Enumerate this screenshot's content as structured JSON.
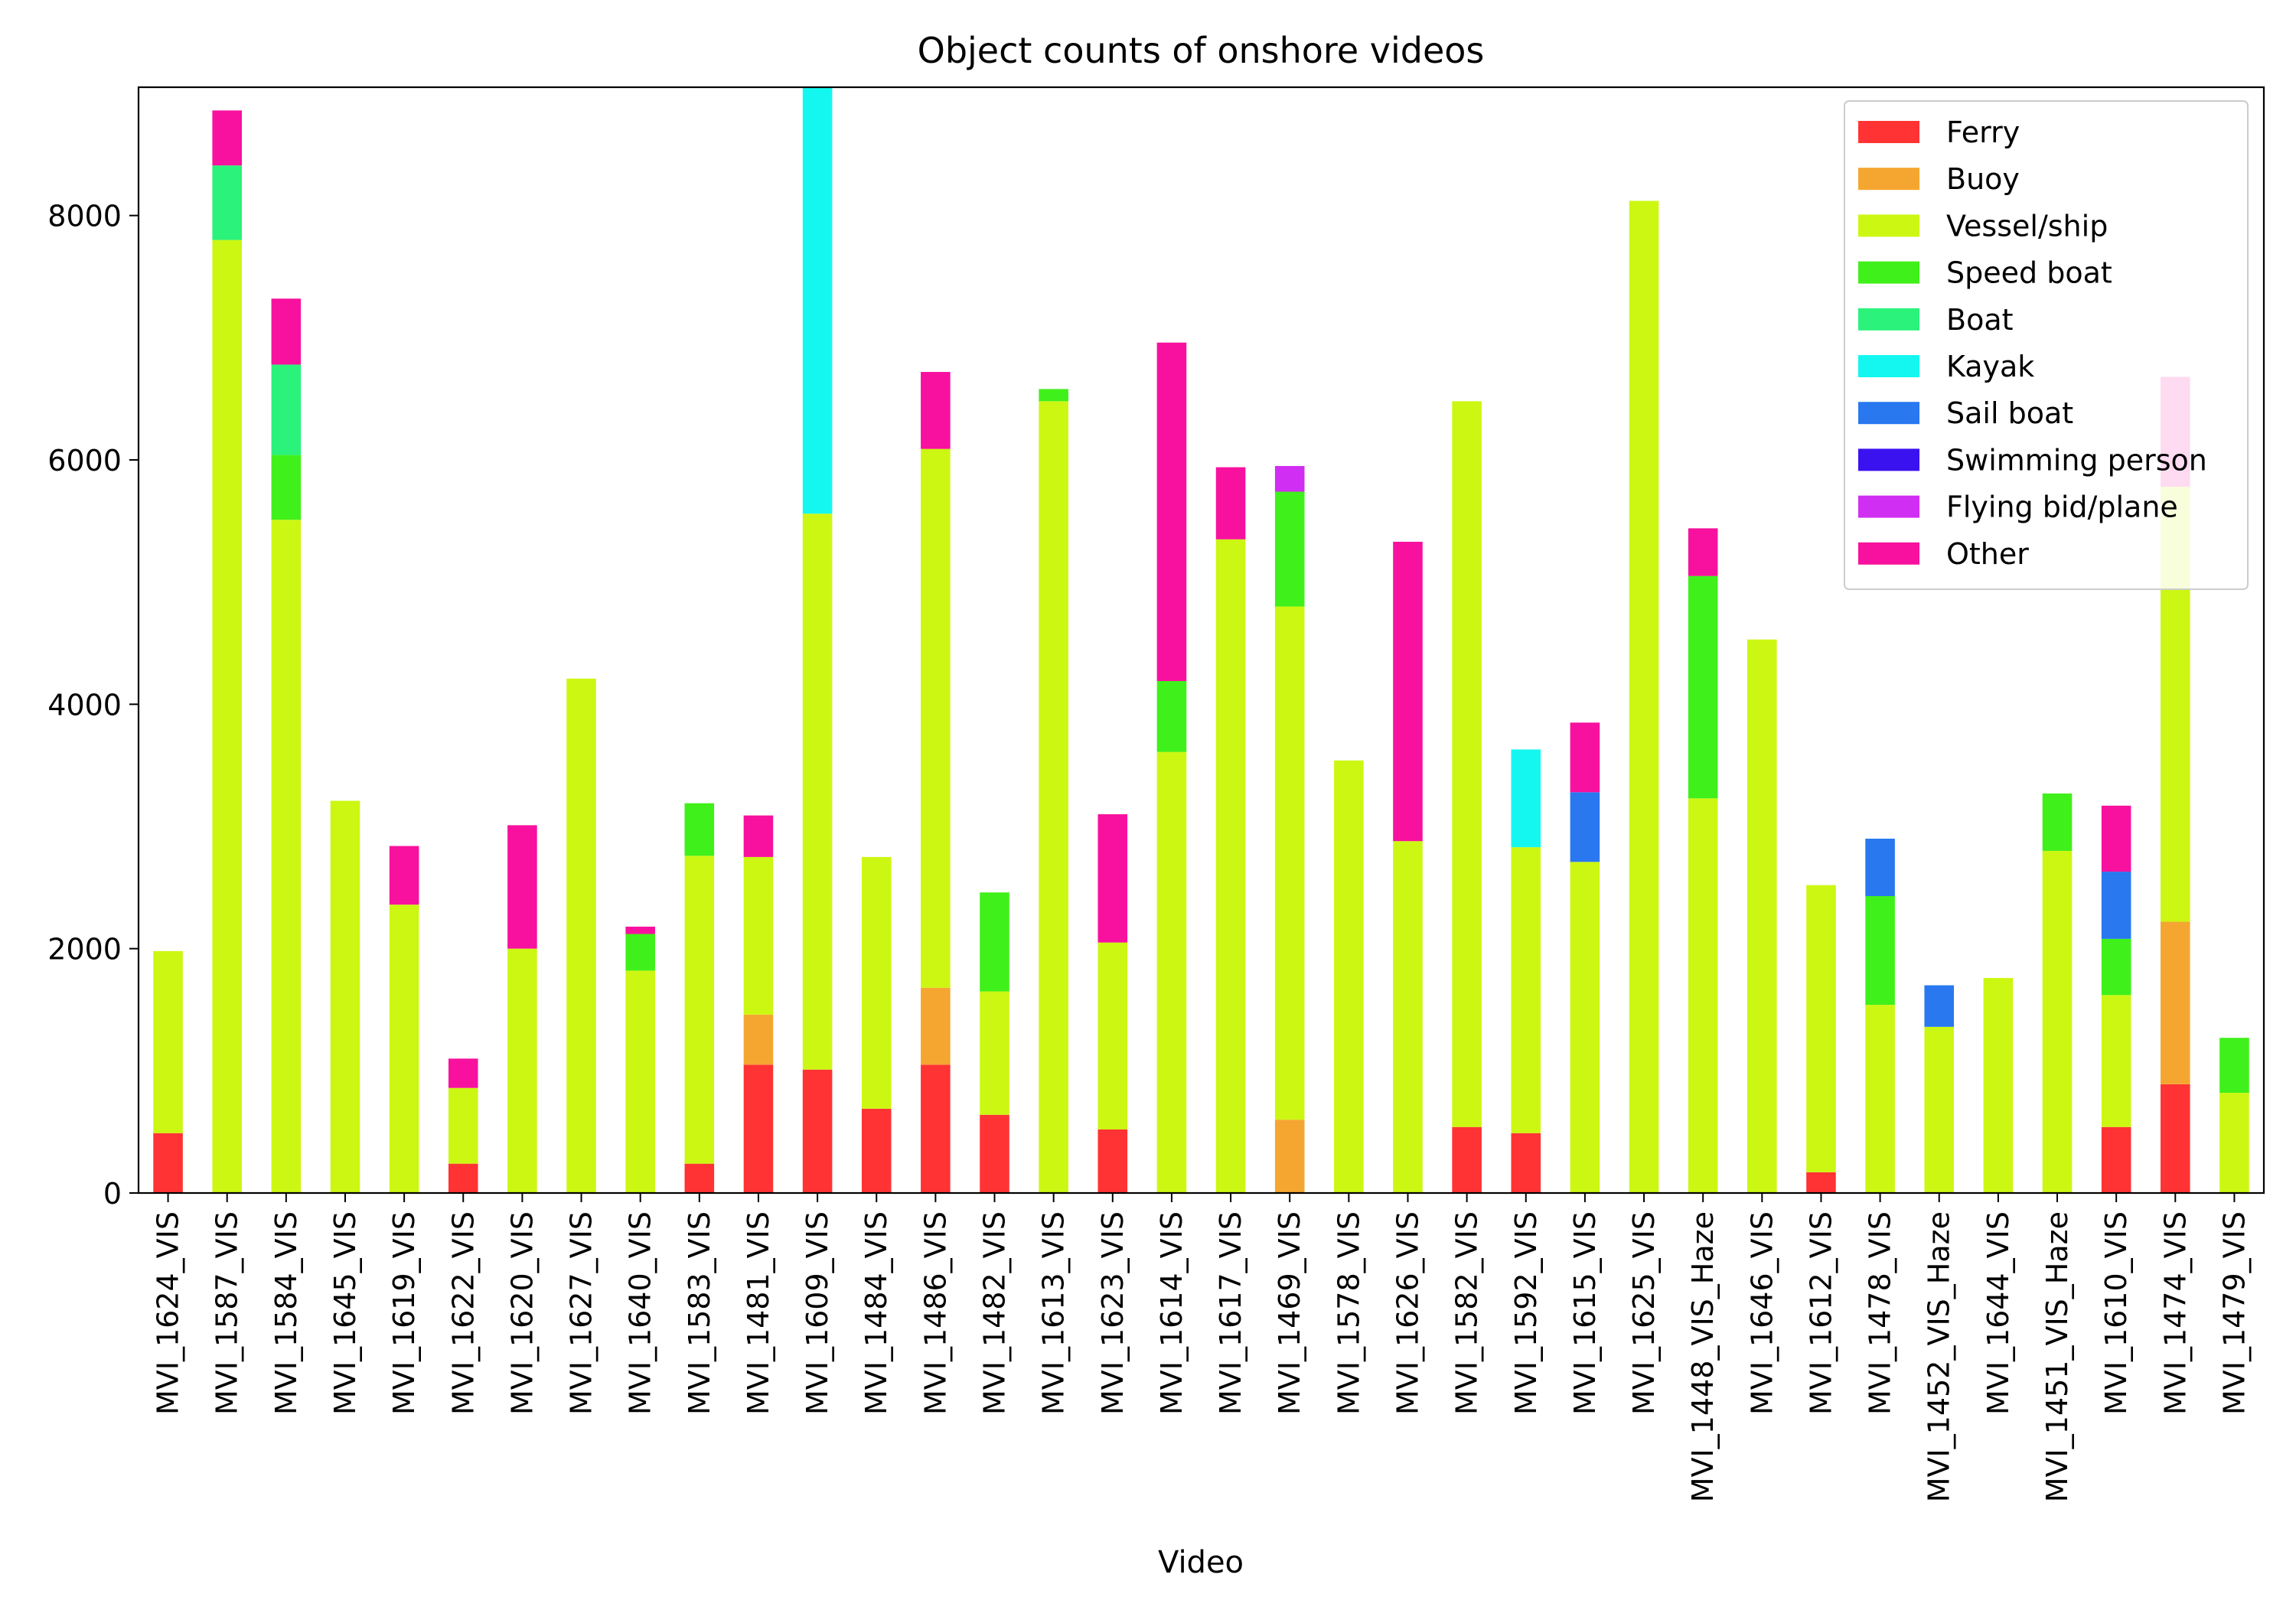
{
  "chart_data": {
    "type": "bar",
    "stacked": true,
    "title": "Object counts of onshore videos",
    "xlabel": "Video",
    "ylabel": "",
    "ylim": [
      0,
      9050
    ],
    "yticks": [
      0,
      2000,
      4000,
      6000,
      8000
    ],
    "grid": false,
    "legend_position": "top-right",
    "categories": [
      "MVI_1624_VIS",
      "MVI_1587_VIS",
      "MVI_1584_VIS",
      "MVI_1645_VIS",
      "MVI_1619_VIS",
      "MVI_1622_VIS",
      "MVI_1620_VIS",
      "MVI_1627_VIS",
      "MVI_1640_VIS",
      "MVI_1583_VIS",
      "MVI_1481_VIS",
      "MVI_1609_VIS",
      "MVI_1484_VIS",
      "MVI_1486_VIS",
      "MVI_1482_VIS",
      "MVI_1613_VIS",
      "MVI_1623_VIS",
      "MVI_1614_VIS",
      "MVI_1617_VIS",
      "MVI_1469_VIS",
      "MVI_1578_VIS",
      "MVI_1626_VIS",
      "MVI_1582_VIS",
      "MVI_1592_VIS",
      "MVI_1615_VIS",
      "MVI_1625_VIS",
      "MVI_1448_VIS_Haze",
      "MVI_1646_VIS",
      "MVI_1612_VIS",
      "MVI_1478_VIS",
      "MVI_1452_VIS_Haze",
      "MVI_1644_VIS",
      "MVI_1451_VIS_Haze",
      "MVI_1610_VIS",
      "MVI_1474_VIS",
      "MVI_1479_VIS"
    ],
    "series": [
      {
        "name": "Ferry",
        "color": "#ff3333",
        "values": [
          490,
          0,
          0,
          0,
          0,
          240,
          0,
          0,
          0,
          240,
          1050,
          1010,
          690,
          1050,
          640,
          0,
          520,
          0,
          0,
          0,
          0,
          0,
          540,
          490,
          0,
          0,
          0,
          0,
          170,
          0,
          0,
          0,
          0,
          540,
          890,
          0
        ]
      },
      {
        "name": "Buoy",
        "color": "#f5a631",
        "values": [
          0,
          0,
          0,
          0,
          0,
          0,
          0,
          0,
          0,
          0,
          410,
          0,
          0,
          630,
          0,
          0,
          0,
          0,
          0,
          600,
          0,
          0,
          0,
          0,
          0,
          0,
          0,
          0,
          0,
          0,
          0,
          0,
          0,
          0,
          1330,
          0
        ]
      },
      {
        "name": "Vessel/ship",
        "color": "#ccf712",
        "values": [
          1490,
          7800,
          5510,
          3210,
          2360,
          620,
          2000,
          4210,
          1820,
          2520,
          1290,
          4550,
          2060,
          4410,
          1010,
          6480,
          1530,
          3610,
          5350,
          4200,
          3540,
          2880,
          5940,
          2340,
          2710,
          8120,
          3230,
          4530,
          2350,
          1540,
          1360,
          1760,
          2800,
          1080,
          3560,
          820
        ]
      },
      {
        "name": "Speed boat",
        "color": "#40f01a",
        "values": [
          0,
          0,
          530,
          0,
          0,
          0,
          0,
          0,
          300,
          430,
          0,
          0,
          0,
          0,
          810,
          100,
          0,
          580,
          0,
          940,
          0,
          0,
          0,
          0,
          0,
          0,
          1820,
          0,
          0,
          890,
          0,
          0,
          470,
          460,
          0,
          450
        ]
      },
      {
        "name": "Boat",
        "color": "#2af27b",
        "values": [
          0,
          610,
          740,
          0,
          0,
          0,
          0,
          0,
          0,
          0,
          0,
          0,
          0,
          0,
          0,
          0,
          0,
          0,
          0,
          0,
          0,
          0,
          0,
          0,
          0,
          0,
          0,
          0,
          0,
          0,
          0,
          0,
          0,
          0,
          0,
          0
        ]
      },
      {
        "name": "Kayak",
        "color": "#14f7f0",
        "values": [
          0,
          0,
          0,
          0,
          0,
          0,
          0,
          0,
          0,
          0,
          0,
          3500,
          0,
          0,
          0,
          0,
          0,
          0,
          0,
          0,
          0,
          0,
          0,
          800,
          0,
          0,
          0,
          0,
          0,
          0,
          0,
          0,
          0,
          0,
          0,
          0
        ]
      },
      {
        "name": "Sail boat",
        "color": "#2978f0",
        "values": [
          0,
          0,
          0,
          0,
          0,
          0,
          0,
          0,
          0,
          0,
          0,
          0,
          0,
          0,
          0,
          0,
          0,
          0,
          0,
          0,
          0,
          0,
          0,
          0,
          570,
          0,
          0,
          0,
          0,
          470,
          340,
          0,
          0,
          550,
          0,
          0
        ]
      },
      {
        "name": "Swimming person",
        "color": "#3a12f0",
        "values": [
          0,
          0,
          0,
          0,
          0,
          0,
          0,
          0,
          0,
          0,
          0,
          0,
          0,
          0,
          0,
          0,
          0,
          0,
          0,
          0,
          0,
          0,
          0,
          0,
          0,
          0,
          0,
          0,
          0,
          0,
          0,
          0,
          0,
          0,
          0,
          0
        ]
      },
      {
        "name": "Flying bid/plane",
        "color": "#d02ef2",
        "values": [
          0,
          0,
          0,
          0,
          0,
          0,
          0,
          0,
          0,
          0,
          0,
          0,
          0,
          0,
          0,
          0,
          0,
          0,
          0,
          210,
          0,
          0,
          0,
          0,
          0,
          0,
          0,
          0,
          0,
          0,
          0,
          0,
          0,
          0,
          0,
          0
        ]
      },
      {
        "name": "Other",
        "color": "#f7119e",
        "values": [
          0,
          450,
          540,
          0,
          480,
          240,
          1010,
          0,
          60,
          0,
          340,
          0,
          0,
          630,
          0,
          0,
          1050,
          2770,
          590,
          0,
          0,
          2450,
          0,
          0,
          570,
          0,
          390,
          0,
          0,
          0,
          0,
          0,
          0,
          540,
          900,
          0
        ]
      }
    ]
  }
}
